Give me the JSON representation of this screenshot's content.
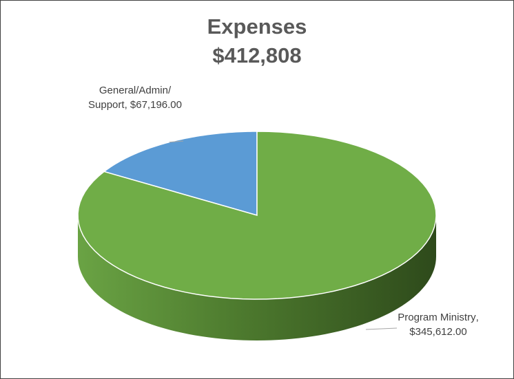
{
  "chart_data": {
    "type": "pie3d",
    "title": "Expenses",
    "subtitle": "$412,808",
    "categories": [
      "General/Admin/ Support",
      "Program Ministry"
    ],
    "values": [
      67196,
      345612
    ],
    "value_labels": [
      "$67,196.00",
      "$345,612.00"
    ],
    "colors": [
      "#5b9bd5",
      "#70ad47"
    ]
  }
}
